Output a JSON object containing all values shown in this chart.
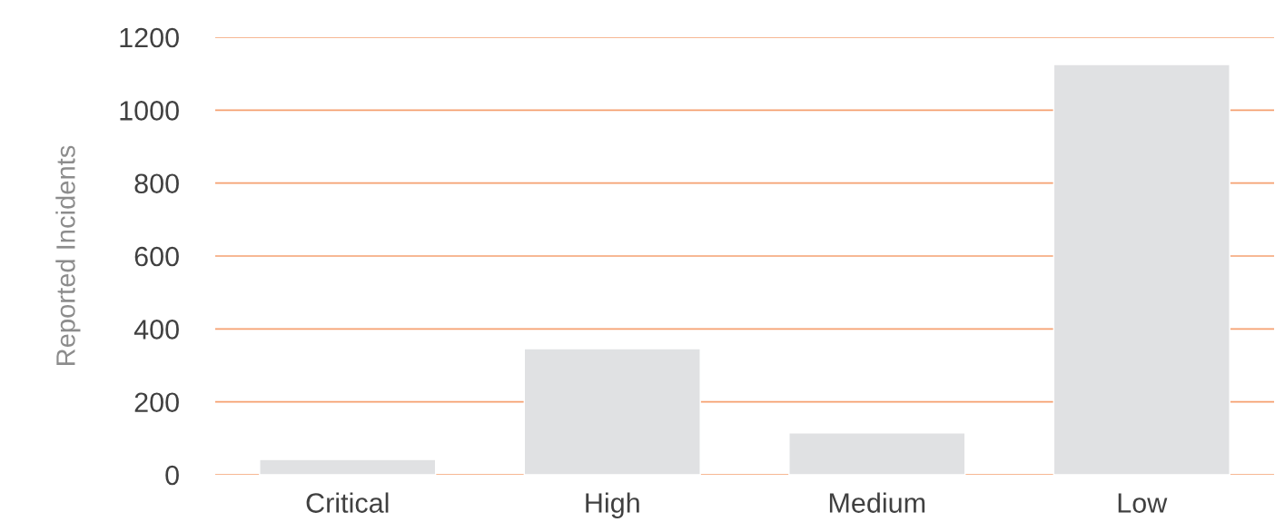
{
  "chart_data": {
    "type": "bar",
    "ylabel": "Reported Incidents",
    "categories": [
      "Critical",
      "High",
      "Medium",
      "Low"
    ],
    "values": [
      42,
      346,
      115,
      1125
    ],
    "color": "#e0e1e3",
    "ylim": [
      0,
      1200
    ],
    "yticks": [
      0,
      200,
      400,
      600,
      800,
      1000,
      1200
    ],
    "grid": "y"
  }
}
